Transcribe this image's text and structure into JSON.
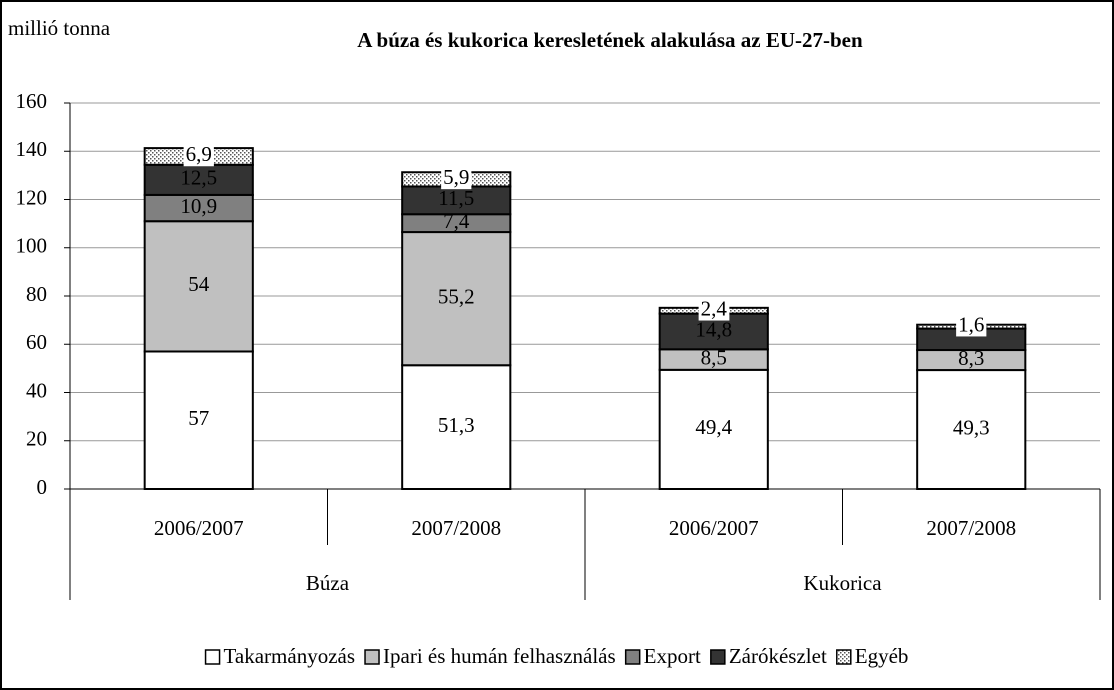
{
  "chart_data": {
    "type": "stacked_bar",
    "title": "A búza és kukorica keresletének alakulása az EU-27-ben",
    "y_label": "millió tonna",
    "groups": [
      {
        "label": "Búza",
        "categories": [
          "2006/2007",
          "2007/2008"
        ]
      },
      {
        "label": "Kukorica",
        "categories": [
          "2006/2007",
          "2007/2008"
        ]
      }
    ],
    "series": [
      {
        "name": "Takarmányozás",
        "color": "#ffffff",
        "values": [
          57,
          51.3,
          49.4,
          49.3
        ],
        "value_labels": [
          "57",
          "51,3",
          "49,4",
          "49,3"
        ]
      },
      {
        "name": "Ipari és humán felhasználás",
        "color": "#c0c0c0",
        "values": [
          54,
          55.2,
          8.5,
          8.3
        ],
        "value_labels": [
          "54",
          "55,2",
          "8,5",
          "8,3"
        ]
      },
      {
        "name": "Export",
        "color": "#808080",
        "values": [
          10.9,
          7.4,
          null,
          null
        ],
        "value_labels": [
          "10,9",
          "7,4",
          null,
          null
        ]
      },
      {
        "name": "Zárókészlet",
        "color": "#333333",
        "values": [
          12.5,
          11.5,
          14.8,
          8.9
        ],
        "value_labels": [
          "12,5",
          "11,5",
          "14,8",
          null
        ]
      },
      {
        "name": "Egyéb",
        "color": "#e0e0e0",
        "pattern": "dots",
        "values": [
          6.9,
          5.9,
          2.4,
          1.6
        ],
        "value_labels": [
          "6,9",
          "5,9",
          "2,4",
          "1,6"
        ]
      }
    ],
    "ylim": [
      0,
      160
    ],
    "yticks": [
      0,
      20,
      40,
      60,
      80,
      100,
      120,
      140,
      160
    ],
    "grid": true,
    "legend": "bottom"
  }
}
